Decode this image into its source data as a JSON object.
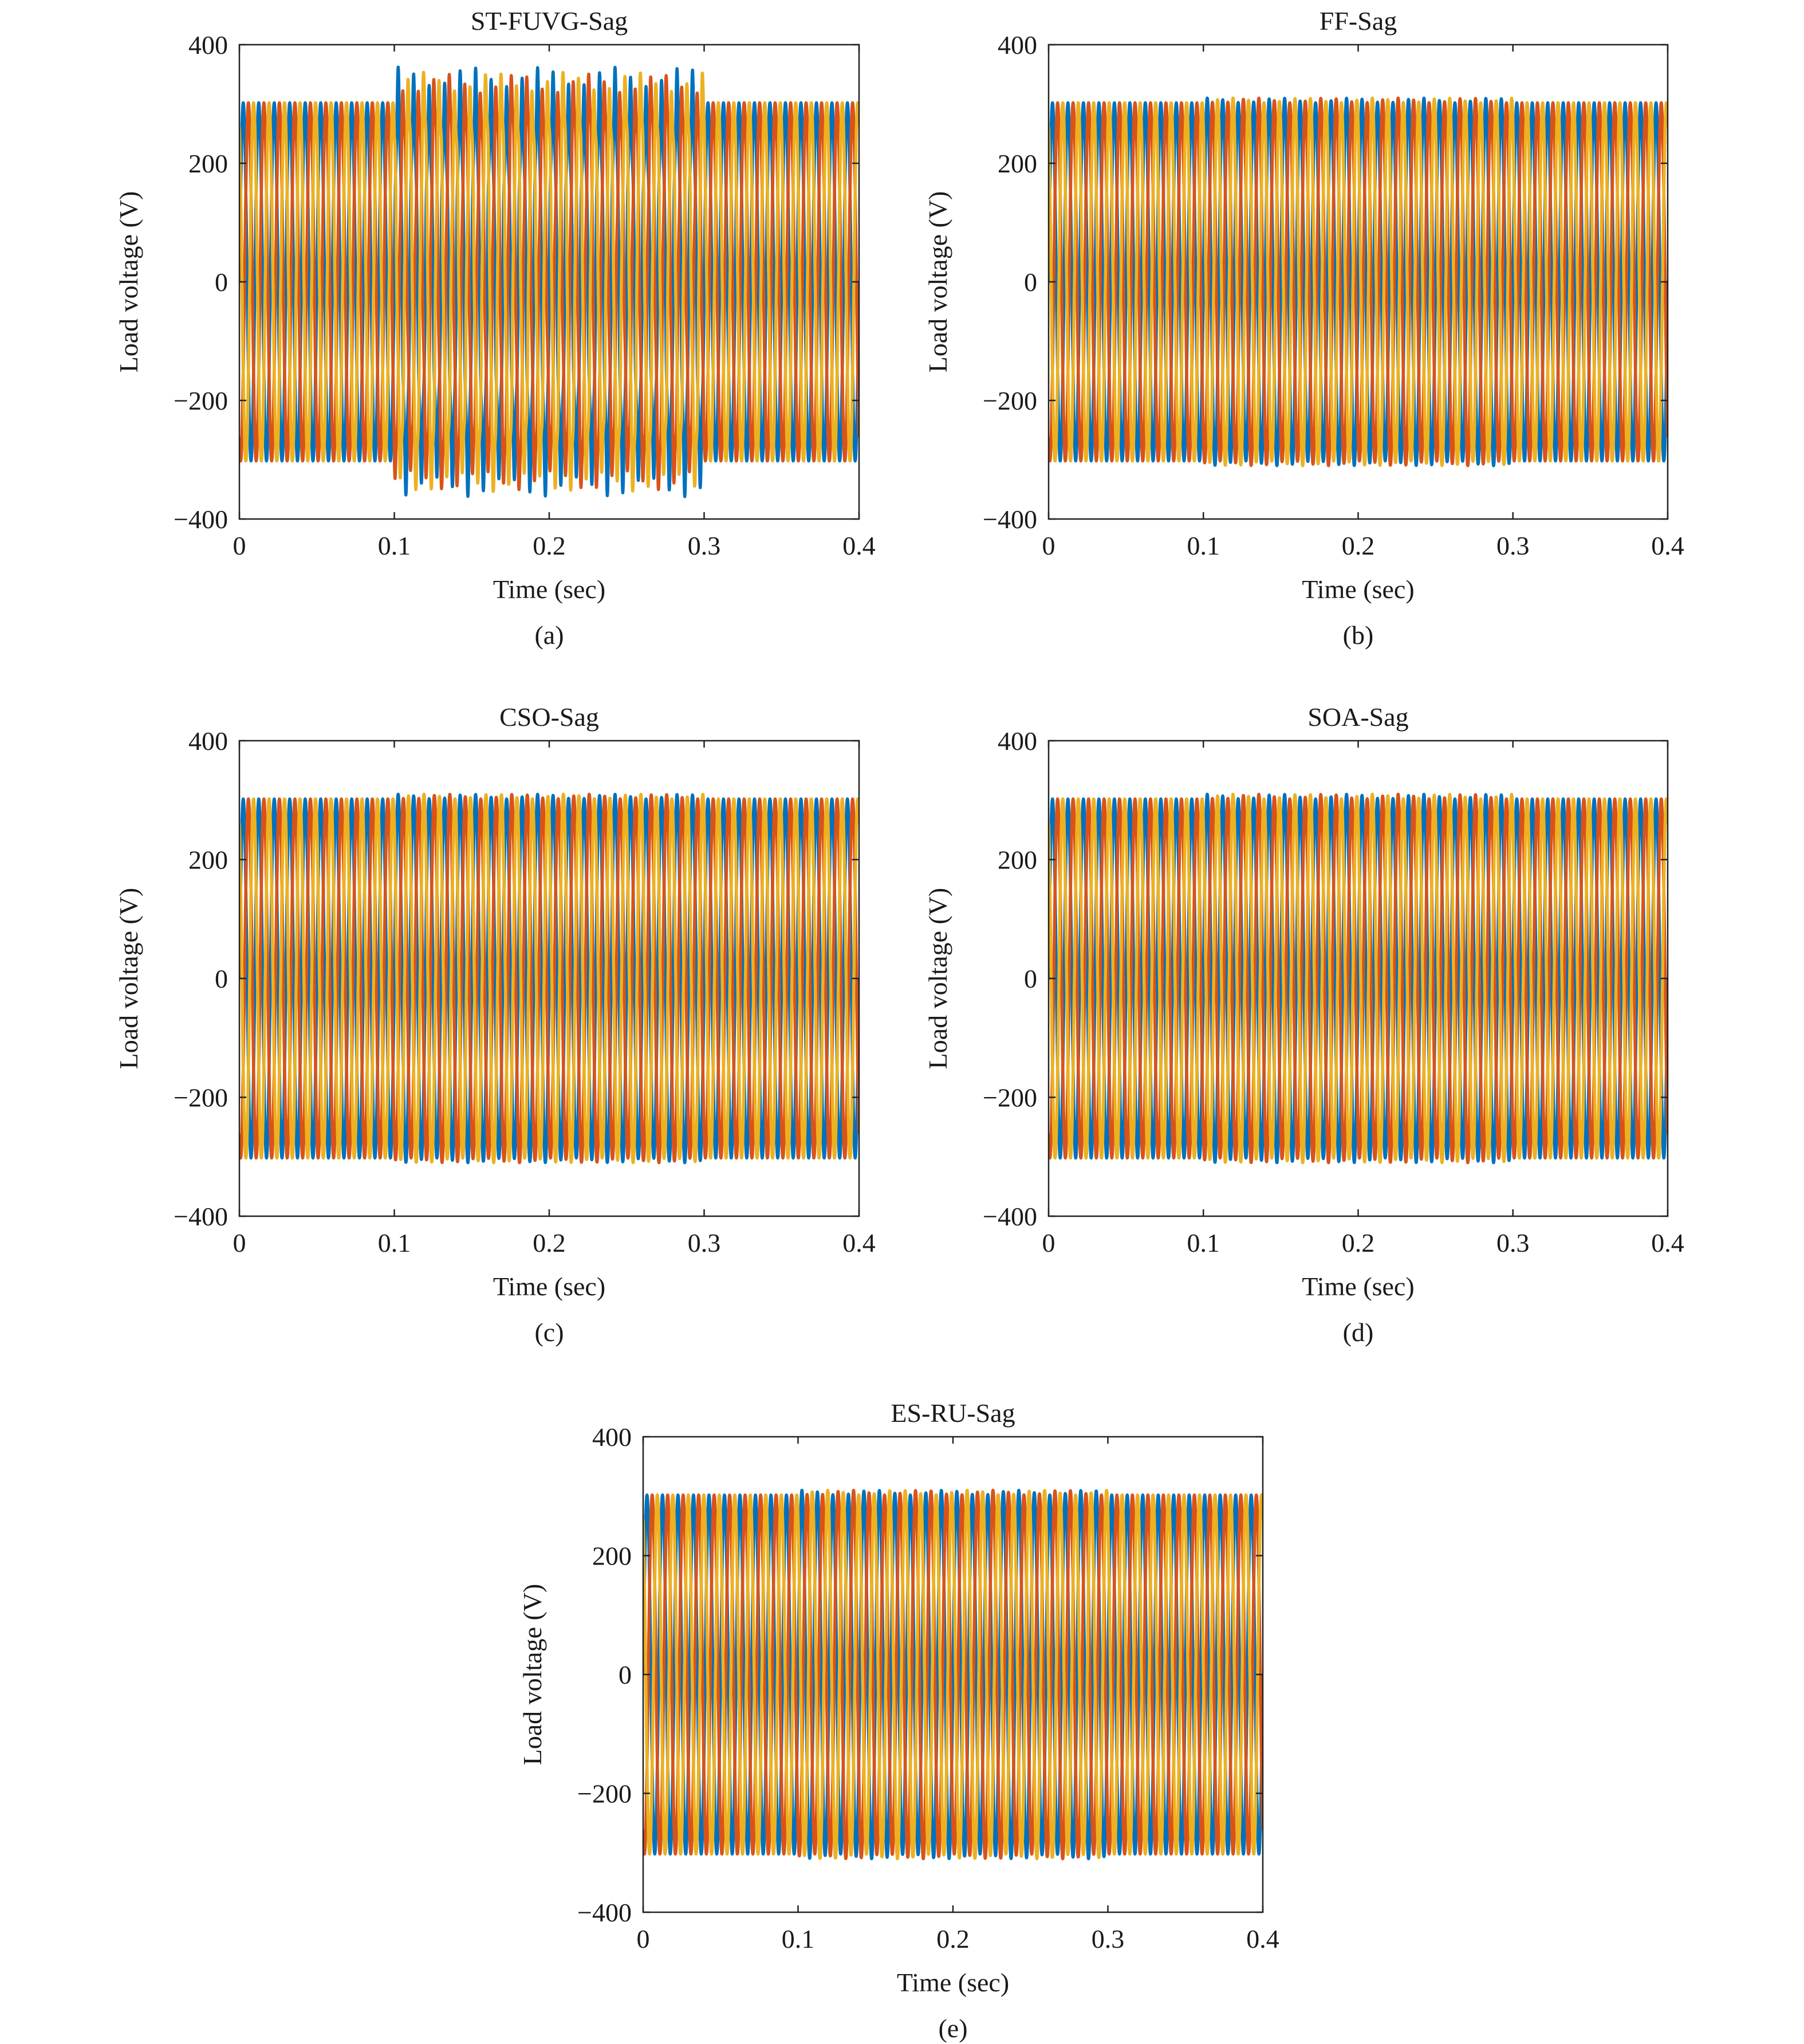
{
  "colors": {
    "phase_a": "#0072BD",
    "phase_b": "#D95319",
    "phase_c": "#EDB120",
    "axes": "#222222"
  },
  "chart_data": [
    {
      "type": "line",
      "panel": "(a)",
      "title": "ST-FUVG-Sag",
      "xlabel": "Time (sec)",
      "ylabel": "Load voltage (V)",
      "xlim": [
        0,
        0.4
      ],
      "ylim": [
        -400,
        400
      ],
      "xticks": [
        "0",
        "0.1",
        "0.2",
        "0.3",
        "0.4"
      ],
      "yticks": [
        "400",
        "200",
        "0",
        "−200",
        "−400"
      ],
      "grid": false,
      "legend": "none",
      "waveform": {
        "frequency_hz": 100,
        "amplitude": 302,
        "sag_window": [
          0.1,
          0.3
        ],
        "sag_peak": 335,
        "sag_distortion": 0.09
      },
      "series": [
        {
          "phase_deg": 0
        },
        {
          "phase_deg": -120
        },
        {
          "phase_deg": 120
        }
      ]
    },
    {
      "type": "line",
      "panel": "(b)",
      "title": "FF-Sag",
      "xlabel": "Time (sec)",
      "ylabel": "Load voltage (V)",
      "xlim": [
        0,
        0.4
      ],
      "ylim": [
        -400,
        400
      ],
      "xticks": [
        "0",
        "0.1",
        "0.2",
        "0.3",
        "0.4"
      ],
      "yticks": [
        "400",
        "200",
        "0",
        "−200",
        "−400"
      ],
      "grid": false,
      "legend": "none",
      "waveform": {
        "frequency_hz": 100,
        "amplitude": 302,
        "sag_window": [
          0.1,
          0.3
        ],
        "sag_peak": 310,
        "sag_distortion": 0.0
      },
      "series": [
        {
          "phase_deg": 0
        },
        {
          "phase_deg": -120
        },
        {
          "phase_deg": 120
        }
      ]
    },
    {
      "type": "line",
      "panel": "(c)",
      "title": "CSO-Sag",
      "xlabel": "Time (sec)",
      "ylabel": "Load voltage (V)",
      "xlim": [
        0,
        0.4
      ],
      "ylim": [
        -400,
        400
      ],
      "xticks": [
        "0",
        "0.1",
        "0.2",
        "0.3",
        "0.4"
      ],
      "yticks": [
        "400",
        "200",
        "0",
        "−200",
        "−400"
      ],
      "grid": false,
      "legend": "none",
      "waveform": {
        "frequency_hz": 100,
        "amplitude": 302,
        "sag_window": [
          0.1,
          0.3
        ],
        "sag_peak": 310,
        "sag_distortion": 0.0
      },
      "series": [
        {
          "phase_deg": 0
        },
        {
          "phase_deg": -120
        },
        {
          "phase_deg": 120
        }
      ]
    },
    {
      "type": "line",
      "panel": "(d)",
      "title": "SOA-Sag",
      "xlabel": "Time (sec)",
      "ylabel": "Load voltage (V)",
      "xlim": [
        0,
        0.4
      ],
      "ylim": [
        -400,
        400
      ],
      "xticks": [
        "0",
        "0.1",
        "0.2",
        "0.3",
        "0.4"
      ],
      "yticks": [
        "400",
        "200",
        "0",
        "−200",
        "−400"
      ],
      "grid": false,
      "legend": "none",
      "waveform": {
        "frequency_hz": 100,
        "amplitude": 302,
        "sag_window": [
          0.1,
          0.3
        ],
        "sag_peak": 310,
        "sag_distortion": 0.0
      },
      "series": [
        {
          "phase_deg": 0
        },
        {
          "phase_deg": -120
        },
        {
          "phase_deg": 120
        }
      ]
    },
    {
      "type": "line",
      "panel": "(e)",
      "title": "ES-RU-Sag",
      "xlabel": "Time (sec)",
      "ylabel": "Load voltage (V)",
      "xlim": [
        0,
        0.4
      ],
      "ylim": [
        -400,
        400
      ],
      "xticks": [
        "0",
        "0.1",
        "0.2",
        "0.3",
        "0.4"
      ],
      "yticks": [
        "400",
        "200",
        "0",
        "−200",
        "−400"
      ],
      "grid": false,
      "legend": "none",
      "waveform": {
        "frequency_hz": 100,
        "amplitude": 302,
        "sag_window": [
          0.1,
          0.3
        ],
        "sag_peak": 310,
        "sag_distortion": 0.0
      },
      "series": [
        {
          "phase_deg": 0
        },
        {
          "phase_deg": -120
        },
        {
          "phase_deg": 120
        }
      ]
    }
  ]
}
